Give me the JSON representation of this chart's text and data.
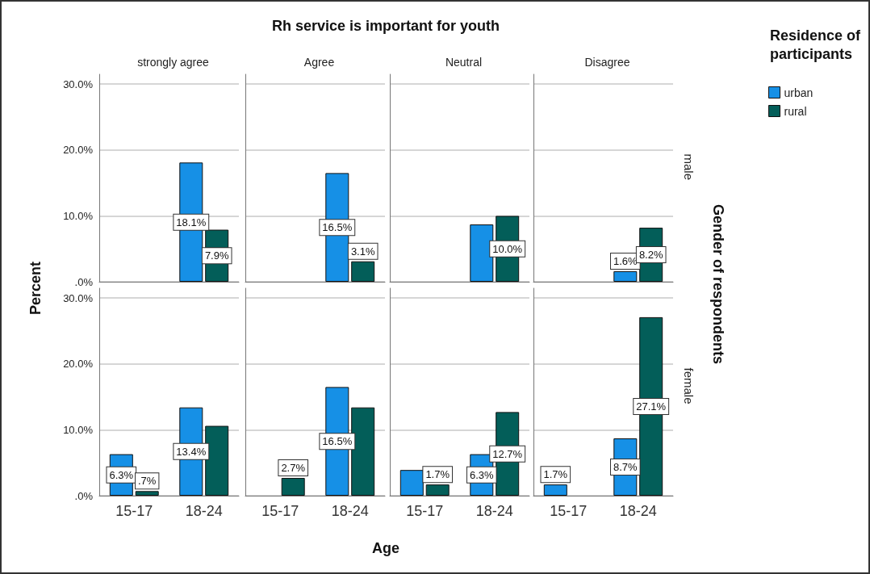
{
  "chart_data": [
    {
      "type": "bar",
      "title": "strongly agree",
      "categories": [
        "15-17",
        "18-24"
      ],
      "tick_labels": "y",
      "grid": "y",
      "ylim": [
        0,
        31.5
      ],
      "yticks": [
        {
          "value": 0,
          "label": ".0%"
        },
        {
          "value": 10,
          "label": "10.0%"
        },
        {
          "value": 20,
          "label": "20.0%"
        },
        {
          "value": 30,
          "label": "30.0%"
        }
      ],
      "series": [
        {
          "color": "#1690e6",
          "values": [
            null,
            18.1
          ],
          "value_labels": [
            null,
            "18.1%"
          ]
        },
        {
          "color": "#035e59",
          "values": [
            null,
            7.9
          ],
          "value_labels": [
            null,
            "7.9%"
          ]
        }
      ]
    },
    {
      "type": "bar",
      "title": "Agree",
      "categories": [
        "15-17",
        "18-24"
      ],
      "tick_labels": false,
      "grid": "y",
      "ylim": [
        0,
        31.5
      ],
      "yticks": [
        0,
        10,
        20,
        30
      ],
      "series": [
        {
          "color": "#1690e6",
          "values": [
            null,
            16.5
          ],
          "value_labels": [
            null,
            "16.5%"
          ]
        },
        {
          "color": "#035e59",
          "values": [
            null,
            3.1
          ],
          "value_labels": [
            null,
            "3.1%"
          ]
        }
      ]
    },
    {
      "type": "bar",
      "title": "Neutral",
      "categories": [
        "15-17",
        "18-24"
      ],
      "tick_labels": false,
      "grid": "y",
      "ylim": [
        0,
        31.5
      ],
      "yticks": [
        0,
        10,
        20,
        30
      ],
      "series": [
        {
          "color": "#1690e6",
          "values": [
            null,
            8.7
          ],
          "value_labels": [
            null,
            null
          ]
        },
        {
          "color": "#035e59",
          "values": [
            null,
            10.0
          ],
          "value_labels": [
            null,
            "10.0%"
          ]
        }
      ]
    },
    {
      "type": "bar",
      "title": "Disagree",
      "categories": [
        "15-17",
        "18-24"
      ],
      "tick_labels": false,
      "grid": "y",
      "ylim": [
        0,
        31.5
      ],
      "yticks": [
        0,
        10,
        20,
        30
      ],
      "legend": "top right",
      "legend_title": "Residence of participants",
      "annotations": [
        "male"
      ],
      "series": [
        {
          "name": "urban",
          "color": "#1690e6",
          "values": [
            null,
            1.6
          ],
          "value_labels": [
            null,
            "1.6%"
          ]
        },
        {
          "name": "rural",
          "color": "#035e59",
          "values": [
            null,
            8.2
          ],
          "value_labels": [
            null,
            "8.2%"
          ]
        }
      ]
    },
    {
      "type": "bar",
      "categories": [
        "15-17",
        "18-24"
      ],
      "grid": "y",
      "ylim": [
        0,
        31.5
      ],
      "yticks": [
        {
          "value": 0,
          "label": ".0%"
        },
        {
          "value": 10,
          "label": "10.0%"
        },
        {
          "value": 20,
          "label": "20.0%"
        },
        {
          "value": 30,
          "label": "30.0%"
        }
      ],
      "series": [
        {
          "color": "#1690e6",
          "values": [
            6.3,
            13.4
          ],
          "value_labels": [
            "6.3%",
            "13.4%"
          ]
        },
        {
          "color": "#035e59",
          "values": [
            0.7,
            10.6
          ],
          "value_labels": [
            ".7%",
            null
          ]
        }
      ]
    },
    {
      "type": "bar",
      "categories": [
        "15-17",
        "18-24"
      ],
      "tick_labels": "x",
      "grid": "y",
      "ylim": [
        0,
        31.5
      ],
      "yticks": [
        0,
        10,
        20,
        30
      ],
      "series": [
        {
          "color": "#1690e6",
          "values": [
            null,
            16.5
          ],
          "value_labels": [
            null,
            "16.5%"
          ]
        },
        {
          "color": "#035e59",
          "values": [
            2.7,
            13.4
          ],
          "value_labels": [
            "2.7%",
            null
          ]
        }
      ]
    },
    {
      "type": "bar",
      "categories": [
        "15-17",
        "18-24"
      ],
      "tick_labels": "x",
      "grid": "y",
      "ylim": [
        0,
        31.5
      ],
      "yticks": [
        0,
        10,
        20,
        30
      ],
      "series": [
        {
          "color": "#1690e6",
          "values": [
            3.9,
            6.3
          ],
          "value_labels": [
            null,
            "6.3%"
          ]
        },
        {
          "color": "#035e59",
          "values": [
            1.7,
            12.7
          ],
          "value_labels": [
            "1.7%",
            "12.7%"
          ]
        }
      ]
    },
    {
      "type": "bar",
      "categories": [
        "15-17",
        "18-24"
      ],
      "tick_labels": "x",
      "grid": "y",
      "ylim": [
        0,
        31.5
      ],
      "yticks": [
        0,
        10,
        20,
        30
      ],
      "annotations": [
        "female"
      ],
      "series": [
        {
          "color": "#1690e6",
          "values": [
            1.7,
            8.7
          ],
          "value_labels": [
            "1.7%",
            "8.7%"
          ]
        },
        {
          "color": "#035e59",
          "values": [
            null,
            27.1
          ],
          "value_labels": [
            null,
            "27.1%"
          ]
        }
      ]
    },
    {
      "type": "other",
      "title": "Rh service is important for youth",
      "xlabel": "Age",
      "ylabel": "Percent",
      "y2label": "Gender of respondents"
    }
  ]
}
